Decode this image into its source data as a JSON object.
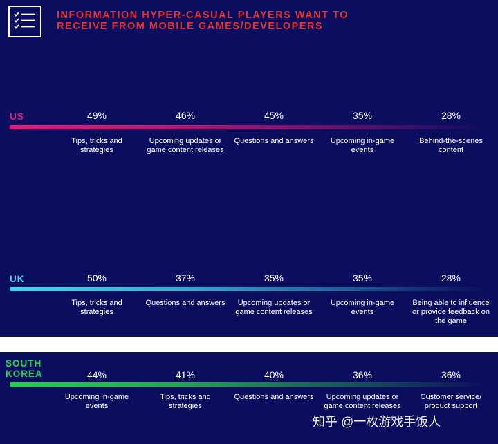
{
  "header": {
    "title_line1": "INFORMATION HYPER-CASUAL PLAYERS WANT TO",
    "title_line2": "RECEIVE FROM MOBILE GAMES/DEVELOPERS",
    "icon": "checklist-icon"
  },
  "colors": {
    "background": "#0b0d5e",
    "us": "#e8197d",
    "uk": "#3fd8ee",
    "south_korea": "#22d34a",
    "title": "#e8322c"
  },
  "chart_data": [
    {
      "type": "bar",
      "country": "US",
      "categories": [
        "Tips, tricks and strategies",
        "Upcoming updates or game content releases",
        "Questions and answers",
        "Upcoming in-game events",
        "Behind-the-scenes content"
      ],
      "values": [
        49,
        46,
        45,
        35,
        28
      ],
      "value_labels": [
        "49%",
        "46%",
        "45%",
        "35%",
        "28%"
      ]
    },
    {
      "type": "bar",
      "country": "UK",
      "categories": [
        "Tips, tricks and strategies",
        "Questions and answers",
        "Upcoming updates or game content releases",
        "Upcoming in-game events",
        "Being able to influence or provide feedback on the game"
      ],
      "values": [
        50,
        37,
        35,
        35,
        28
      ],
      "value_labels": [
        "50%",
        "37%",
        "35%",
        "35%",
        "28%"
      ]
    },
    {
      "type": "bar",
      "country": "SOUTH KOREA",
      "categories": [
        "Upcoming in-game events",
        "Tips, tricks and strategies",
        "Questions and answers",
        "Upcoming updates or game content releases",
        "Customer service/ product support"
      ],
      "values": [
        44,
        41,
        40,
        36,
        36
      ],
      "value_labels": [
        "44%",
        "41%",
        "40%",
        "36%",
        "36%"
      ]
    }
  ],
  "watermark": "知乎 @一枚游戏手饭人"
}
